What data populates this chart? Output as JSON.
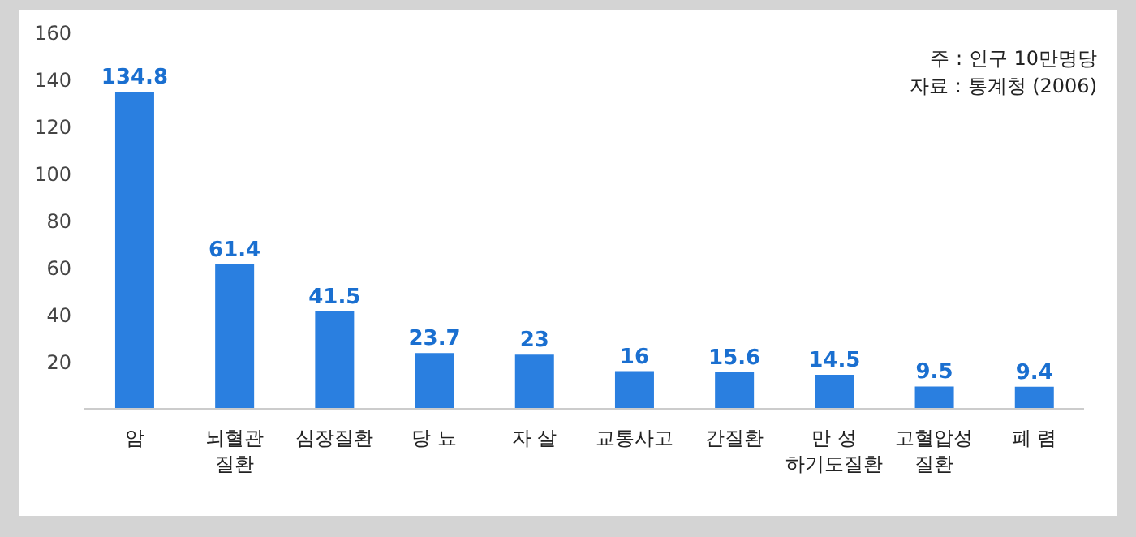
{
  "chart_data": {
    "type": "bar",
    "categories": [
      "암",
      "뇌혈관\n질환",
      "심장질환",
      "당 뇨",
      "자 살",
      "교통사고",
      "간질환",
      "만 성\n하기도질환",
      "고혈압성\n질환",
      "폐 렴"
    ],
    "values": [
      134.8,
      61.4,
      41.5,
      23.7,
      23,
      16,
      15.6,
      14.5,
      9.5,
      9.4
    ],
    "color": "#2a7fe0",
    "ylim": [
      0,
      160
    ],
    "yticks": [
      20,
      40,
      60,
      80,
      100,
      120,
      140,
      160
    ],
    "data_labels": true,
    "annotations": [
      "주 : 인구 10만명당",
      "자료 : 통계청 (2006)"
    ]
  }
}
